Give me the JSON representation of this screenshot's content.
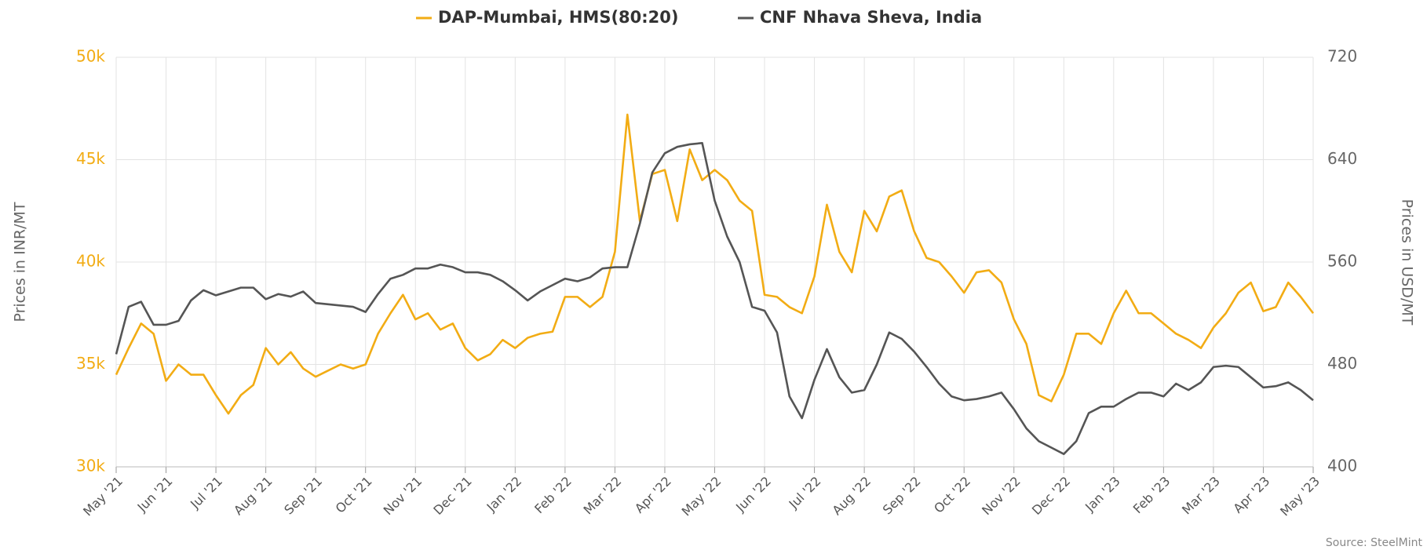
{
  "chart_data": {
    "type": "line",
    "categories": [
      "May '21",
      null,
      null,
      null,
      "Jun '21",
      null,
      null,
      null,
      "Jul '21",
      null,
      null,
      null,
      "Aug '21",
      null,
      null,
      null,
      "Sep '21",
      null,
      null,
      null,
      "Oct '21",
      null,
      null,
      null,
      "Nov '21",
      null,
      null,
      null,
      "Dec '21",
      null,
      null,
      null,
      "Jan '22",
      null,
      null,
      null,
      "Feb '22",
      null,
      null,
      null,
      "Mar '22",
      null,
      null,
      null,
      "Apr '22",
      null,
      null,
      null,
      "May '22",
      null,
      null,
      null,
      "Jun '22",
      null,
      null,
      null,
      "Jul '22",
      null,
      null,
      null,
      "Aug '22",
      null,
      null,
      null,
      "Sep '22",
      null,
      null,
      null,
      "Oct '22",
      null,
      null,
      null,
      "Nov '22",
      null,
      null,
      null,
      "Dec '22",
      null,
      null,
      null,
      "Jan '23",
      null,
      null,
      null,
      "Feb '23",
      null,
      null,
      null,
      "Mar '23",
      null,
      null,
      null,
      "Apr '23",
      null,
      null,
      null,
      "May '23"
    ],
    "series": [
      {
        "name": "DAP-Mumbai, HMS(80:20)",
        "color": "#f2ac14",
        "axis": "y",
        "values": [
          34500,
          35800,
          37000,
          36500,
          34200,
          35000,
          34500,
          34500,
          33500,
          32600,
          33500,
          34000,
          35800,
          35000,
          35600,
          34800,
          34400,
          34700,
          35000,
          34800,
          35000,
          36500,
          37500,
          38400,
          37200,
          37500,
          36700,
          37000,
          35800,
          35200,
          35500,
          36200,
          35800,
          36300,
          36500,
          36600,
          38300,
          38300,
          37800,
          38300,
          40500,
          47200,
          42000,
          44300,
          44500,
          42000,
          45500,
          44000,
          44500,
          44000,
          43000,
          42500,
          38400,
          38300,
          37800,
          37500,
          39300,
          42800,
          40500,
          39500,
          42500,
          41500,
          43200,
          43500,
          41500,
          40200,
          40000,
          39300,
          38500,
          39500,
          39600,
          39000,
          37200,
          36000,
          33500,
          33200,
          34500,
          36500,
          36500,
          36000,
          37500,
          38600,
          37500,
          37500,
          37000,
          36500,
          36200,
          35800,
          36800,
          37500,
          38500,
          39000,
          37600,
          37800,
          39000,
          38300,
          37500
        ]
      },
      {
        "name": "CNF Nhava Sheva, India",
        "color": "#555555",
        "axis": "y2",
        "values": [
          488,
          525,
          529,
          511,
          511,
          514,
          530,
          538,
          534,
          537,
          540,
          540,
          531,
          535,
          533,
          537,
          528,
          527,
          526,
          525,
          521,
          535,
          547,
          550,
          555,
          555,
          558,
          556,
          552,
          552,
          550,
          545,
          538,
          530,
          537,
          542,
          547,
          545,
          548,
          555,
          556,
          556,
          590,
          630,
          645,
          650,
          652,
          653,
          608,
          580,
          560,
          525,
          522,
          505,
          455,
          438,
          468,
          492,
          470,
          458,
          460,
          480,
          505,
          500,
          490,
          478,
          465,
          455,
          452,
          453,
          455,
          458,
          445,
          430,
          420,
          415,
          410,
          420,
          442,
          447,
          447,
          453,
          458,
          458,
          455,
          465,
          460,
          466,
          478,
          479,
          478,
          470,
          462,
          463,
          466,
          460,
          452
        ]
      }
    ],
    "ylabel": "Prices in INR/MT",
    "y2label": "Prices in USD/MT",
    "ylim": [
      30000,
      50000
    ],
    "yticks": [
      {
        "value": 30000,
        "label": "30k"
      },
      {
        "value": 35000,
        "label": "35k"
      },
      {
        "value": 40000,
        "label": "40k"
      },
      {
        "value": 45000,
        "label": "45k"
      },
      {
        "value": 50000,
        "label": "50k"
      }
    ],
    "y2lim": [
      400,
      720
    ],
    "y2ticks": [
      400,
      480,
      560,
      640,
      720
    ],
    "grid": true,
    "legend": "top",
    "source": "Source: SteelMint"
  }
}
